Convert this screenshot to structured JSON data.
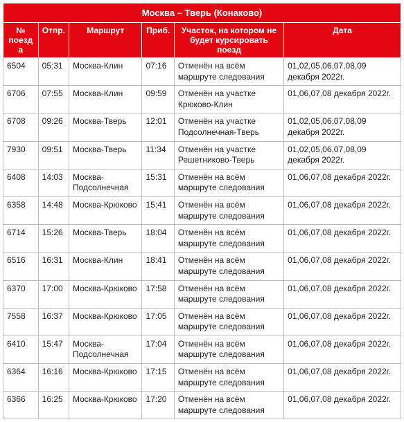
{
  "title": "Москва – Тверь (Конаково)",
  "columns": [
    "№ поезда",
    "Отпр.",
    "Маршрут",
    "Приб.",
    "Участок, на котором не будет курсировать поезд",
    "Дата"
  ],
  "rows": [
    {
      "train": "6504",
      "dep": "05:31",
      "route": "Москва-Клин",
      "arr": "07:16",
      "section": "Отменён на всём маршруте следования",
      "date": "01,02,05,06,07,08,09 декабря 2022г."
    },
    {
      "train": "6706",
      "dep": "07:55",
      "route": "Москва-Клин",
      "arr": "09:59",
      "section": "Отменён на участке Крюково-Клин",
      "date": "01,06,07,08 декабря 2022г."
    },
    {
      "train": "6708",
      "dep": "09:26",
      "route": "Москва-Тверь",
      "arr": "12:01",
      "section": "Отменён на участке Подсолнечная-Тверь",
      "date": "01,02,05,06,07,08,09 декабря 2022г."
    },
    {
      "train": "7930",
      "dep": "09:51",
      "route": "Москва-Тверь",
      "arr": "11:34",
      "section": "Отменён на участке Решетниково-Тверь",
      "date": "01,02,05,06,07,08,09 декабря 2022г."
    },
    {
      "train": "6408",
      "dep": "14:03",
      "route": "Москва-Подсолнечная",
      "arr": "15:31",
      "section": "Отменён на всём маршруте следования",
      "date": "01,06,07,08 декабря 2022г."
    },
    {
      "train": "6358",
      "dep": "14:48",
      "route": "Москва-Крюково",
      "arr": "15:41",
      "section": "Отменён на всём маршруте следования",
      "date": "01,06,07,08 декабря 2022г."
    },
    {
      "train": "6714",
      "dep": "15:26",
      "route": "Москва-Тверь",
      "arr": "18:04",
      "section": "Отменён на всём маршруте следования",
      "date": "01,06,07,08 декабря 2022г."
    },
    {
      "train": "6516",
      "dep": "16:31",
      "route": "Москва-Клин",
      "arr": "18:41",
      "section": "Отменён на всём маршруте следования",
      "date": "01,06,07,08 декабря 2022г."
    },
    {
      "train": "6370",
      "dep": "17:00",
      "route": "Москва-Крюково",
      "arr": "17:58",
      "section": "Отменён на всём маршруте следования",
      "date": "01,06,07,08 декабря 2022г."
    },
    {
      "train": "7558",
      "dep": "16:37",
      "route": "Москва-Крюково",
      "arr": "17:05",
      "section": "Отменён на всём маршруте следования",
      "date": "01,06,07,08 декабря 2022г."
    },
    {
      "train": "6410",
      "dep": "15:47",
      "route": "Москва-Подсолнечная",
      "arr": "17:04",
      "section": "Отменён на всём маршруте следования",
      "date": "01,06,07,08 декабря 2022г."
    },
    {
      "train": "6364",
      "dep": "16:16",
      "route": "Москва-Крюково",
      "arr": "17:15",
      "section": "Отменён на всём маршруте следования",
      "date": "01,06,07,08 декабря 2022г."
    },
    {
      "train": "6366",
      "dep": "16:25",
      "route": "Москва-Крюково",
      "arr": "17:20",
      "section": "Отменён на всём маршруте следования",
      "date": "01,06,07,08 декабря 2022г."
    }
  ]
}
